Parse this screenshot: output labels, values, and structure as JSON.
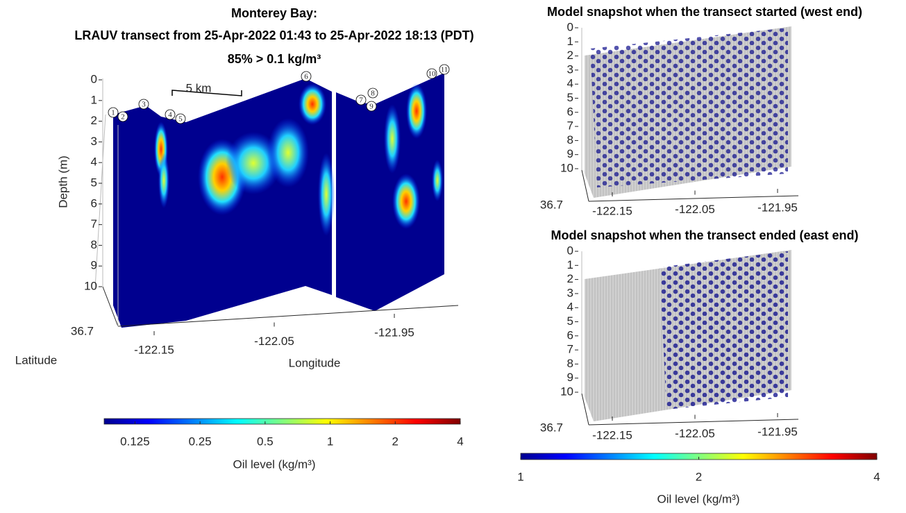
{
  "chart_data": [
    {
      "type": "curtain",
      "title": [
        "Monterey Bay:",
        "LRAUV transect from 25-Apr-2022 01:43 to 25-Apr-2022 18:13 (PDT)",
        "85% > 0.1 kg/m³"
      ],
      "ylabel": "Depth (m)",
      "xlabel": "Longitude",
      "zlabel": "Latitude",
      "ylim": [
        0,
        10
      ],
      "yticks": [
        0,
        1,
        2,
        3,
        4,
        5,
        6,
        7,
        8,
        9,
        10
      ],
      "xlim": [
        -122.19,
        -121.9
      ],
      "xticks": [
        -122.15,
        -122.05,
        -121.95
      ],
      "zticks": [
        36.7
      ],
      "waypoints": [
        1,
        2,
        3,
        4,
        5,
        6,
        7,
        8,
        9,
        10,
        11
      ],
      "scale_bar": "5 km",
      "colorbar": {
        "label": "Oil level (kg/m³)",
        "scale": "log",
        "lim": [
          0.09,
          4
        ],
        "ticks": [
          0.125,
          0.25,
          0.5,
          1,
          2,
          4
        ]
      }
    },
    {
      "type": "scatter3d",
      "title": "Model snapshot when the transect started (west end)",
      "ylim": [
        0,
        10
      ],
      "yticks": [
        0,
        1,
        2,
        3,
        4,
        5,
        6,
        7,
        8,
        9,
        10
      ],
      "xlim": [
        -122.2,
        -121.9
      ],
      "xticks": [
        -122.15,
        -122.05,
        -121.95
      ],
      "zticks": [
        36.7
      ]
    },
    {
      "type": "scatter3d",
      "title": "Model snapshot when the transect ended (east end)",
      "ylim": [
        0,
        10
      ],
      "yticks": [
        0,
        1,
        2,
        3,
        4,
        5,
        6,
        7,
        8,
        9,
        10
      ],
      "xlim": [
        -122.2,
        -121.9
      ],
      "xticks": [
        -122.15,
        -122.05,
        -121.95
      ],
      "zticks": [
        36.7
      ],
      "colorbar": {
        "label": "Oil level (kg/m³)",
        "scale": "log",
        "lim": [
          1,
          4
        ],
        "ticks": [
          1,
          2,
          4
        ]
      }
    }
  ]
}
